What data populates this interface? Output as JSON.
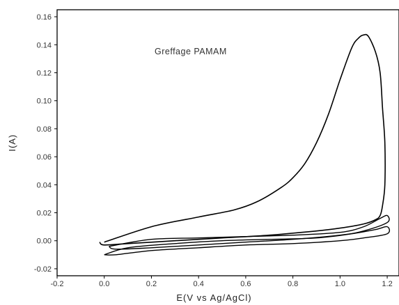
{
  "chart_data": {
    "type": "line",
    "title": "",
    "annotation": "Greffage PAMAM",
    "xlabel": "E(V vs Ag/AgCl)",
    "ylabel": "I(A)",
    "xlim": [
      -0.2,
      1.25
    ],
    "ylim": [
      -0.025,
      0.165
    ],
    "xticks": [
      -0.2,
      0.0,
      0.2,
      0.4,
      0.6,
      0.8,
      1.0,
      1.2
    ],
    "xtick_labels": [
      "-0.2",
      "0.0",
      "0.2",
      "0.4",
      "0.6",
      "0.8",
      "1.0",
      "1.2"
    ],
    "yticks": [
      -0.02,
      0.0,
      0.02,
      0.04,
      0.06,
      0.08,
      0.1,
      0.12,
      0.14,
      0.16
    ],
    "ytick_labels": [
      "-0.02",
      "0.00",
      "0.02",
      "0.04",
      "0.06",
      "0.08",
      "0.10",
      "0.12",
      "0.14",
      "0.16"
    ],
    "grid": false,
    "line_color": "#000000",
    "series": [
      {
        "x": [
          0.0,
          0.2,
          0.4,
          0.55,
          0.65,
          0.75,
          0.8,
          0.85,
          0.9,
          0.95,
          1.0,
          1.05,
          1.08,
          1.1,
          1.12,
          1.15,
          1.17,
          1.18,
          1.19,
          1.19,
          1.18,
          1.17,
          1.15,
          1.1,
          1.0,
          0.9,
          0.7,
          0.5,
          0.3,
          0.1,
          0.0,
          -0.02
        ],
        "y": [
          -0.001,
          0.01,
          0.017,
          0.022,
          0.028,
          0.038,
          0.045,
          0.055,
          0.07,
          0.09,
          0.115,
          0.138,
          0.145,
          0.147,
          0.146,
          0.135,
          0.12,
          0.095,
          0.07,
          0.04,
          0.025,
          0.018,
          0.015,
          0.012,
          0.009,
          0.007,
          0.004,
          0.002,
          0.0,
          -0.002,
          -0.003,
          -0.001
        ]
      },
      {
        "x": [
          0.02,
          0.2,
          0.4,
          0.6,
          0.8,
          1.0,
          1.1,
          1.17,
          1.2,
          1.2,
          1.1,
          1.0,
          0.8,
          0.6,
          0.4,
          0.2,
          0.05,
          0.02
        ],
        "y": [
          -0.004,
          0.001,
          0.002,
          0.003,
          0.004,
          0.006,
          0.01,
          0.016,
          0.018,
          0.013,
          0.007,
          0.004,
          0.001,
          -0.001,
          -0.003,
          -0.005,
          -0.006,
          -0.004
        ]
      },
      {
        "x": [
          0.0,
          0.1,
          0.3,
          0.5,
          0.7,
          0.9,
          1.05,
          1.15,
          1.2,
          1.2,
          1.1,
          1.0,
          0.8,
          0.6,
          0.4,
          0.2,
          0.05,
          0.0
        ],
        "y": [
          -0.01,
          -0.005,
          -0.002,
          0.0,
          0.001,
          0.002,
          0.005,
          0.008,
          0.01,
          0.005,
          0.002,
          0.0,
          -0.002,
          -0.003,
          -0.005,
          -0.007,
          -0.01,
          -0.01
        ]
      }
    ]
  }
}
